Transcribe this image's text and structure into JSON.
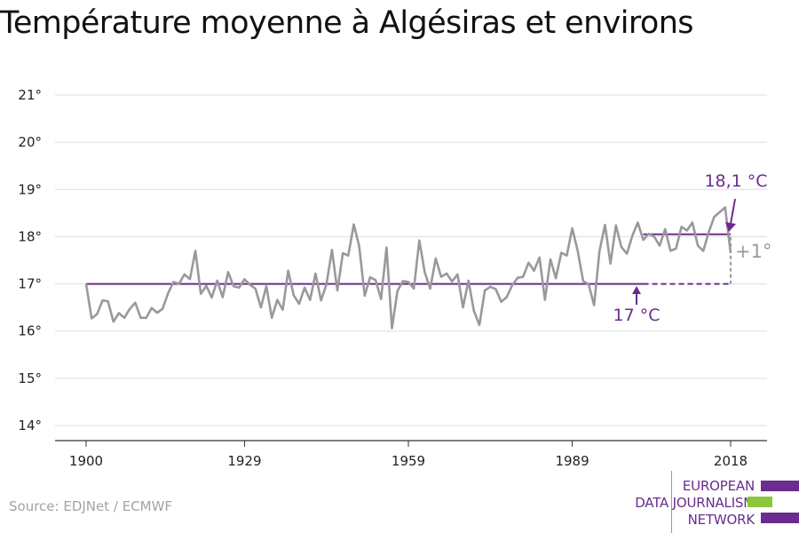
{
  "title": "Température moyenne à Algésiras et environs",
  "source": "Source: EDJNet / ECMWF",
  "logo": {
    "lines": [
      "EUROPEAN",
      "DATA JOURNALISM",
      "NETWORK"
    ],
    "colors": {
      "purple": "#6a2c8e",
      "green": "#8cc63f"
    }
  },
  "colors": {
    "series": "#999999",
    "reference": "#6a2c8e",
    "annotation": "#6a2c8e",
    "delta": "#9b9b9b",
    "grid": "#dddddd",
    "axis": "#333333"
  },
  "chart_data": {
    "type": "line",
    "title": "Température moyenne à Algésiras et environs",
    "xlabel": "",
    "ylabel": "",
    "xlim": [
      1900,
      2018
    ],
    "ylim": [
      14,
      21
    ],
    "x_ticks": [
      1900,
      1929,
      1959,
      1989,
      2018
    ],
    "y_ticks": [
      {
        "value": 14,
        "label": "14°"
      },
      {
        "value": 15,
        "label": "15°"
      },
      {
        "value": 16,
        "label": "16°"
      },
      {
        "value": 17,
        "label": "17°"
      },
      {
        "value": 18,
        "label": "18°"
      },
      {
        "value": 19,
        "label": "19°"
      },
      {
        "value": 20,
        "label": "20°"
      },
      {
        "value": 21,
        "label": "21°"
      }
    ],
    "grid": true,
    "series": [
      {
        "x": [
          1900,
          1901,
          1902,
          1903,
          1904,
          1905,
          1906,
          1907,
          1908,
          1909,
          1910,
          1911,
          1912,
          1913,
          1914,
          1915,
          1916,
          1917,
          1918,
          1919,
          1920,
          1921,
          1922,
          1923,
          1924,
          1925,
          1926,
          1927,
          1928,
          1929,
          1930,
          1931,
          1932,
          1933,
          1934,
          1935,
          1936,
          1937,
          1938,
          1939,
          1940,
          1941,
          1942,
          1943,
          1944,
          1945,
          1946,
          1947,
          1948,
          1949,
          1950,
          1951,
          1952,
          1953,
          1954,
          1955,
          1956,
          1957,
          1958,
          1959,
          1960,
          1961,
          1962,
          1963,
          1964,
          1965,
          1966,
          1967,
          1968,
          1969,
          1970,
          1971,
          1972,
          1973,
          1974,
          1975,
          1976,
          1977,
          1978,
          1979,
          1980,
          1981,
          1982,
          1983,
          1984,
          1985,
          1986,
          1987,
          1988,
          1989,
          1990,
          1991,
          1992,
          1993,
          1994,
          1995,
          1996,
          1997,
          1998,
          1999,
          2000,
          2001,
          2002,
          2003,
          2004,
          2005,
          2006,
          2007,
          2008,
          2009,
          2010,
          2011,
          2012,
          2013,
          2014,
          2015,
          2016,
          2017,
          2018
        ],
        "y": [
          17.0,
          16.27,
          16.36,
          16.65,
          16.63,
          16.2,
          16.38,
          16.28,
          16.47,
          16.6,
          16.28,
          16.28,
          16.49,
          16.39,
          16.47,
          16.8,
          17.04,
          17.0,
          17.2,
          17.1,
          17.7,
          16.79,
          16.96,
          16.71,
          17.07,
          16.72,
          17.25,
          16.95,
          16.92,
          17.1,
          16.98,
          16.9,
          16.5,
          16.95,
          16.28,
          16.66,
          16.45,
          17.28,
          16.76,
          16.58,
          16.92,
          16.66,
          17.22,
          16.65,
          16.99,
          17.72,
          16.86,
          17.65,
          17.6,
          18.26,
          17.8,
          16.75,
          17.14,
          17.08,
          16.68,
          17.77,
          16.06,
          16.85,
          17.06,
          17.04,
          16.9,
          17.92,
          17.24,
          16.9,
          17.54,
          17.15,
          17.22,
          17.05,
          17.2,
          16.5,
          17.07,
          16.43,
          16.13,
          16.86,
          16.94,
          16.89,
          16.62,
          16.72,
          16.97,
          17.13,
          17.15,
          17.45,
          17.28,
          17.56,
          16.66,
          17.52,
          17.12,
          17.66,
          17.6,
          18.18,
          17.7,
          17.06,
          16.99,
          16.55,
          17.7,
          18.25,
          17.43,
          18.24,
          17.78,
          17.64,
          18.02,
          18.3,
          17.93,
          18.06,
          18.0,
          17.81,
          18.16,
          17.7,
          17.75,
          18.21,
          18.13,
          18.3,
          17.81,
          17.7,
          18.1,
          18.42,
          18.52,
          18.62,
          17.65
        ]
      }
    ],
    "reference_line": {
      "value": 17.0,
      "x_start": 1900,
      "x_end": 2002
    },
    "recent_line": {
      "value": 18.05,
      "x_start": 2002,
      "x_end": 2018
    },
    "annotations": {
      "recent_label": "18,1 °C",
      "reference_label": "17 °C",
      "delta_label": "+1°"
    }
  }
}
